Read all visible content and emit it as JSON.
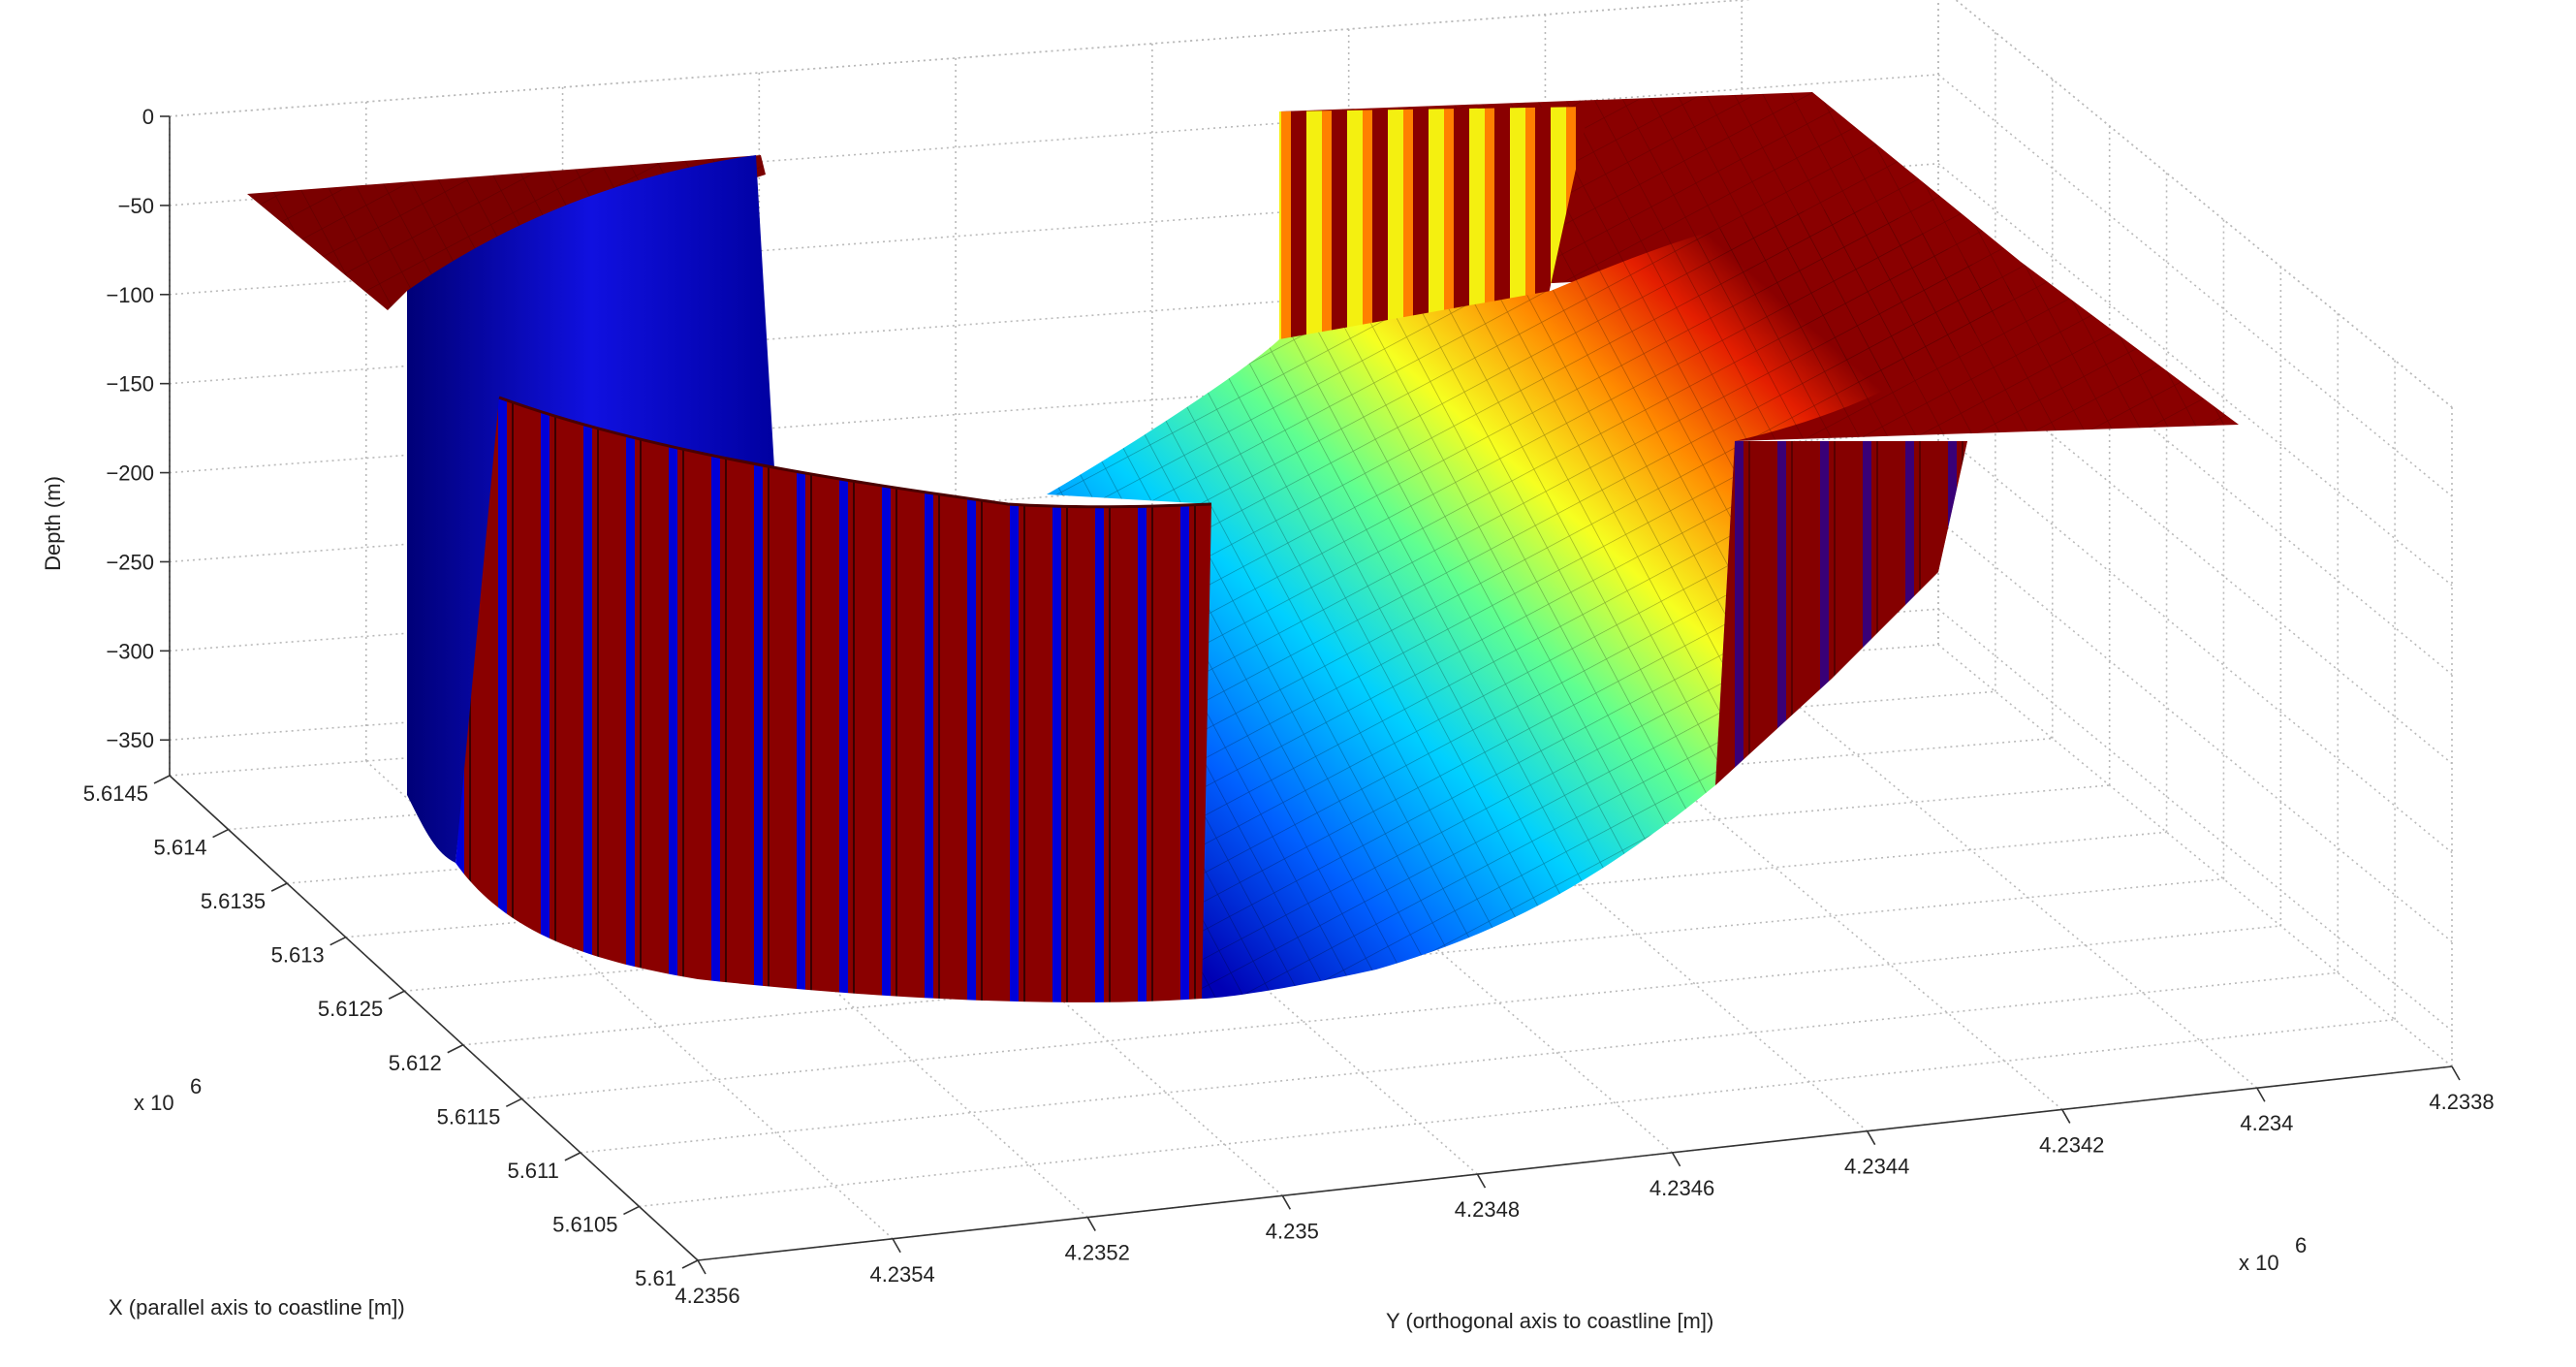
{
  "chart_data": {
    "type": "surface3d",
    "title": "",
    "xlabel": "X (parallel axis to coastline [m])",
    "ylabel": "Y (orthogonal axis to coastline [m])",
    "zlabel": "Depth (m)",
    "x_multiplier": "x 10",
    "x_multiplier_exp": "6",
    "y_multiplier": "x 10",
    "y_multiplier_exp": "6",
    "x_ticks": [
      "5.61",
      "5.6105",
      "5.611",
      "5.6115",
      "5.612",
      "5.6125",
      "5.613",
      "5.6135",
      "5.614",
      "5.6145"
    ],
    "y_ticks": [
      "4.2356",
      "4.2354",
      "4.2352",
      "4.235",
      "4.2348",
      "4.2346",
      "4.2344",
      "4.2342",
      "4.234",
      "4.2338"
    ],
    "z_ticks": [
      "0",
      "−50",
      "−100",
      "−150",
      "−200",
      "−250",
      "−300",
      "−350"
    ],
    "xlim": [
      5.61,
      5.6145
    ],
    "ylim": [
      4.2356,
      4.2338
    ],
    "zlim": [
      -370,
      0
    ],
    "grid": true,
    "colormap": "jet",
    "surface": {
      "description_values": "Bathymetric surface: shelf near 0 m at the edges, basin floor near -350 m; steep red/blue walls on the left and front, smooth colored slope on the right.",
      "shelf_depth": -5,
      "basin_floor_depth": -350
    }
  }
}
